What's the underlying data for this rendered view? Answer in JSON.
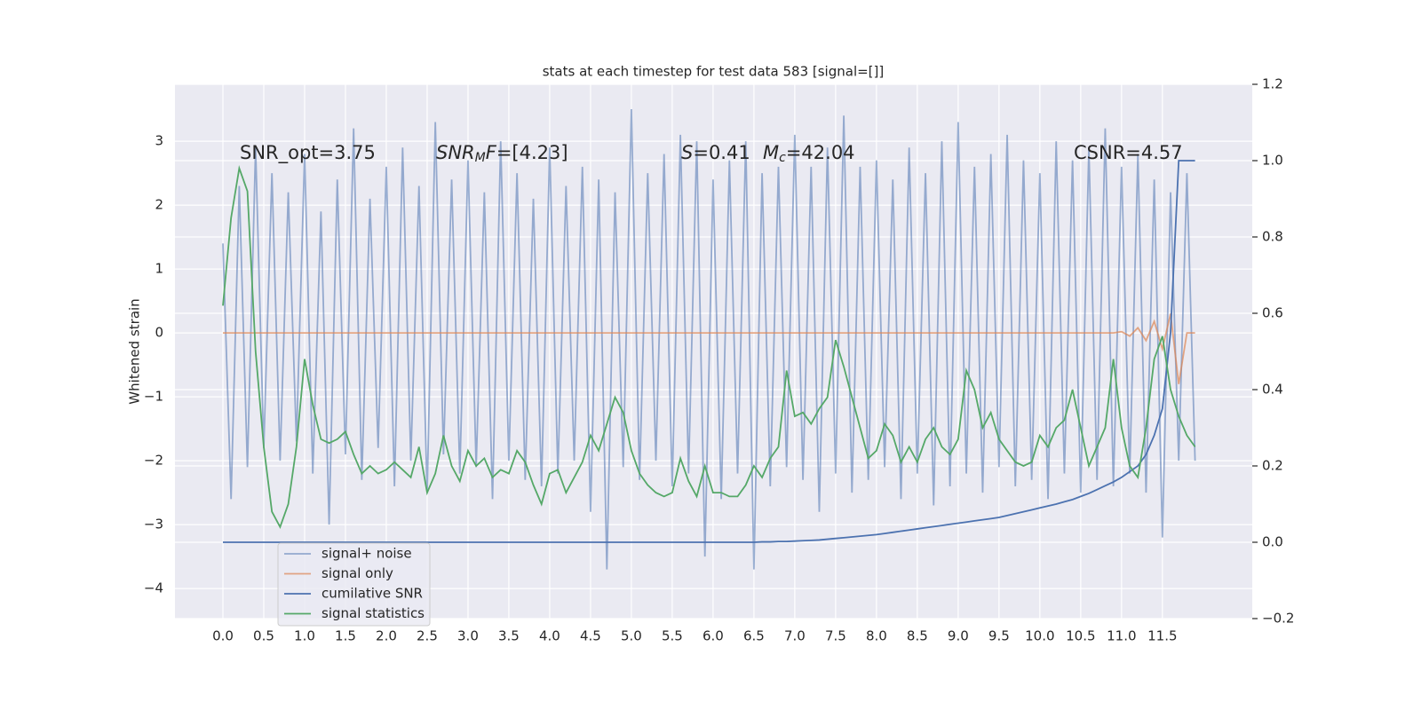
{
  "chart_data": {
    "type": "line",
    "title": "stats at each timestep for test data 583 [signal=[]]",
    "ylabel": "Whitened strain",
    "xlim": [
      -0.587,
      12.6
    ],
    "ylim": [
      -4.47,
      3.89
    ],
    "y2lim": [
      -0.2,
      1.2
    ],
    "xticks": [
      {
        "value": 0,
        "label": "0.0"
      },
      0.5,
      {
        "value": 1,
        "label": "1.0"
      },
      1.5,
      {
        "value": 2,
        "label": "2.0"
      },
      2.5,
      {
        "value": 3,
        "label": "3.0"
      },
      3.5,
      {
        "value": 4,
        "label": "4.0"
      },
      4.5,
      {
        "value": 5,
        "label": "5.0"
      },
      5.5,
      {
        "value": 6,
        "label": "6.0"
      },
      6.5,
      {
        "value": 7,
        "label": "7.0"
      },
      7.5,
      {
        "value": 8,
        "label": "8.0"
      },
      8.5,
      {
        "value": 9,
        "label": "9.0"
      },
      9.5,
      {
        "value": 10,
        "label": "10.0"
      },
      10.5,
      {
        "value": 11,
        "label": "11.0"
      },
      11.5
    ],
    "yticks": [
      {
        "value": -4,
        "label": "−4"
      },
      {
        "value": -3,
        "label": "−3"
      },
      {
        "value": -2,
        "label": "−2"
      },
      {
        "value": -1,
        "label": "−1"
      },
      0,
      1,
      2,
      3
    ],
    "y2ticks": [
      {
        "value": -0.2,
        "label": "−0.2"
      },
      {
        "value": 0,
        "label": "0.0"
      },
      0.2,
      0.4,
      0.6,
      0.8,
      {
        "value": 1,
        "label": "1.0"
      },
      1.2
    ],
    "grid": true,
    "legend": "lower left",
    "annotations": [
      [
        {
          "text": "SNR_opt=3.75"
        }
      ],
      [
        {
          "text": "SNR",
          "italic": true
        },
        {
          "text": "M",
          "italic": true,
          "sub": true
        },
        {
          "text": "F",
          "italic": true
        },
        {
          "text": "=[4.23]"
        }
      ],
      [
        {
          "text": "S",
          "italic": true
        },
        {
          "text": "=0.41"
        }
      ],
      [
        {
          "text": "M",
          "italic": true
        },
        {
          "text": "c",
          "italic": true,
          "sub": true
        },
        {
          "text": "=42.04"
        }
      ],
      [
        {
          "text": "CSNR=4.57"
        }
      ]
    ],
    "x": [
      0.0,
      0.1,
      0.2,
      0.3,
      0.4,
      0.5,
      0.6,
      0.7,
      0.8,
      0.9,
      1.0,
      1.1,
      1.2,
      1.3,
      1.4,
      1.5,
      1.6,
      1.7,
      1.8,
      1.9,
      2.0,
      2.1,
      2.2,
      2.3,
      2.4,
      2.5,
      2.6,
      2.7,
      2.8,
      2.9,
      3.0,
      3.1,
      3.2,
      3.3,
      3.4,
      3.5,
      3.6,
      3.7,
      3.8,
      3.9,
      4.0,
      4.1,
      4.2,
      4.3,
      4.4,
      4.5,
      4.6,
      4.7,
      4.8,
      4.9,
      5.0,
      5.1,
      5.2,
      5.3,
      5.4,
      5.5,
      5.6,
      5.7,
      5.8,
      5.9,
      6.0,
      6.1,
      6.2,
      6.3,
      6.4,
      6.5,
      6.6,
      6.7,
      6.8,
      6.9,
      7.0,
      7.1,
      7.2,
      7.3,
      7.4,
      7.5,
      7.6,
      7.7,
      7.8,
      7.9,
      8.0,
      8.1,
      8.2,
      8.3,
      8.4,
      8.5,
      8.6,
      8.7,
      8.8,
      8.9,
      9.0,
      9.1,
      9.2,
      9.3,
      9.4,
      9.5,
      9.6,
      9.7,
      9.8,
      9.9,
      10.0,
      10.1,
      10.2,
      10.3,
      10.4,
      10.5,
      10.6,
      10.7,
      10.8,
      10.9,
      11.0,
      11.1,
      11.2,
      11.3,
      11.4,
      11.5,
      11.6,
      11.7,
      11.8,
      11.9
    ],
    "series": [
      {
        "name": "signal+ noise",
        "color": "#4c72b0",
        "alpha": 0.55,
        "axis": "y",
        "values": [
          1.4,
          -2.6,
          2.3,
          -2.1,
          2.9,
          -1.8,
          2.5,
          -2.0,
          2.2,
          -1.7,
          2.8,
          -2.2,
          1.9,
          -3.0,
          2.4,
          -1.9,
          3.2,
          -2.3,
          2.1,
          -1.8,
          2.6,
          -2.4,
          2.9,
          -2.0,
          2.3,
          -2.5,
          3.3,
          -1.9,
          2.4,
          -2.2,
          2.7,
          -2.1,
          2.2,
          -2.6,
          3.0,
          -2.0,
          2.5,
          -2.3,
          2.1,
          -2.4,
          2.9,
          -2.2,
          2.3,
          -2.0,
          2.6,
          -2.8,
          2.4,
          -3.7,
          2.2,
          -2.1,
          3.5,
          -2.3,
          2.5,
          -2.0,
          2.8,
          -2.4,
          3.1,
          -2.2,
          3.0,
          -3.5,
          2.4,
          -2.6,
          2.7,
          -2.2,
          3.0,
          -3.7,
          2.5,
          -2.4,
          2.6,
          -2.1,
          3.1,
          -2.3,
          2.6,
          -2.8,
          2.9,
          -2.2,
          3.4,
          -2.5,
          2.6,
          -2.3,
          2.7,
          -2.1,
          2.4,
          -2.6,
          2.9,
          -2.2,
          2.5,
          -2.7,
          3.0,
          -2.4,
          3.3,
          -2.2,
          2.6,
          -2.5,
          2.8,
          -2.1,
          3.1,
          -2.4,
          2.7,
          -2.3,
          2.5,
          -2.6,
          3.0,
          -2.2,
          2.7,
          -2.5,
          2.9,
          -2.3,
          3.2,
          -2.4,
          2.6,
          -2.2,
          2.8,
          -2.5,
          2.4,
          -3.2,
          2.2,
          -2.0,
          2.5,
          -2.0
        ]
      },
      {
        "name": "signal only",
        "color": "#dd8452",
        "alpha": 0.7,
        "axis": "y",
        "values": [
          0,
          0,
          0,
          0,
          0,
          0,
          0,
          0,
          0,
          0,
          0,
          0,
          0,
          0,
          0,
          0,
          0,
          0,
          0,
          0,
          0,
          0,
          0,
          0,
          0,
          0,
          0,
          0,
          0,
          0,
          0,
          0,
          0,
          0,
          0,
          0,
          0,
          0,
          0,
          0,
          0,
          0,
          0,
          0,
          0,
          0,
          0,
          0,
          0,
          0,
          0,
          0,
          0,
          0,
          0,
          0,
          0,
          0,
          0,
          0,
          0,
          0,
          0,
          0,
          0,
          0,
          0,
          0,
          0,
          0,
          0,
          0,
          0,
          0,
          0,
          0,
          0,
          0,
          0,
          0,
          0,
          0,
          0,
          0,
          0,
          0,
          0,
          0,
          0,
          0,
          0,
          0,
          0,
          0,
          0,
          0,
          0,
          0,
          0,
          0,
          0,
          0,
          0,
          0,
          0,
          0,
          0,
          0,
          0,
          0,
          0.02,
          -0.05,
          0.08,
          -0.12,
          0.18,
          -0.25,
          0.3,
          -0.8,
          0,
          0
        ]
      },
      {
        "name": "cumilative SNR",
        "color": "#4c72b0",
        "alpha": 1,
        "axis": "y2",
        "values": [
          0,
          0,
          0,
          0,
          0,
          0,
          0,
          0,
          0,
          0,
          0,
          0,
          0,
          0,
          0,
          0,
          0,
          0,
          0,
          0,
          0,
          0,
          0,
          0,
          0,
          0,
          0,
          0,
          0,
          0,
          0,
          0,
          0,
          0,
          0,
          0,
          0,
          0,
          0,
          0,
          0,
          0,
          0,
          0,
          0,
          0,
          0,
          0,
          0,
          0,
          0,
          0,
          0,
          0,
          0,
          0,
          0,
          0,
          0,
          0,
          0,
          0,
          0,
          0,
          0,
          0,
          0.001,
          0.001,
          0.002,
          0.002,
          0.003,
          0.004,
          0.005,
          0.006,
          0.008,
          0.01,
          0.012,
          0.014,
          0.016,
          0.018,
          0.02,
          0.023,
          0.026,
          0.029,
          0.032,
          0.035,
          0.038,
          0.041,
          0.044,
          0.047,
          0.05,
          0.053,
          0.056,
          0.059,
          0.062,
          0.065,
          0.07,
          0.075,
          0.08,
          0.085,
          0.09,
          0.095,
          0.1,
          0.106,
          0.112,
          0.12,
          0.128,
          0.138,
          0.148,
          0.158,
          0.17,
          0.185,
          0.2,
          0.23,
          0.28,
          0.35,
          0.55,
          1.0,
          1.0,
          1.0
        ]
      },
      {
        "name": "signal statistics",
        "color": "#55a868",
        "alpha": 1,
        "axis": "y2",
        "values": [
          0.62,
          0.85,
          0.98,
          0.92,
          0.5,
          0.25,
          0.08,
          0.04,
          0.1,
          0.25,
          0.48,
          0.36,
          0.27,
          0.26,
          0.27,
          0.29,
          0.23,
          0.18,
          0.2,
          0.18,
          0.19,
          0.21,
          0.19,
          0.17,
          0.25,
          0.13,
          0.18,
          0.28,
          0.2,
          0.16,
          0.24,
          0.2,
          0.22,
          0.17,
          0.19,
          0.18,
          0.24,
          0.21,
          0.15,
          0.1,
          0.18,
          0.19,
          0.13,
          0.17,
          0.21,
          0.28,
          0.24,
          0.31,
          0.38,
          0.34,
          0.24,
          0.18,
          0.15,
          0.13,
          0.12,
          0.13,
          0.22,
          0.16,
          0.12,
          0.2,
          0.13,
          0.13,
          0.12,
          0.12,
          0.15,
          0.2,
          0.17,
          0.22,
          0.25,
          0.45,
          0.33,
          0.34,
          0.31,
          0.35,
          0.38,
          0.53,
          0.46,
          0.38,
          0.3,
          0.22,
          0.24,
          0.31,
          0.28,
          0.21,
          0.25,
          0.21,
          0.27,
          0.3,
          0.25,
          0.23,
          0.27,
          0.45,
          0.4,
          0.3,
          0.34,
          0.27,
          0.24,
          0.21,
          0.2,
          0.21,
          0.28,
          0.25,
          0.3,
          0.32,
          0.4,
          0.3,
          0.2,
          0.25,
          0.3,
          0.48,
          0.3,
          0.2,
          0.17,
          0.3,
          0.48,
          0.54,
          0.4,
          0.33,
          0.28,
          0.25
        ]
      }
    ]
  }
}
